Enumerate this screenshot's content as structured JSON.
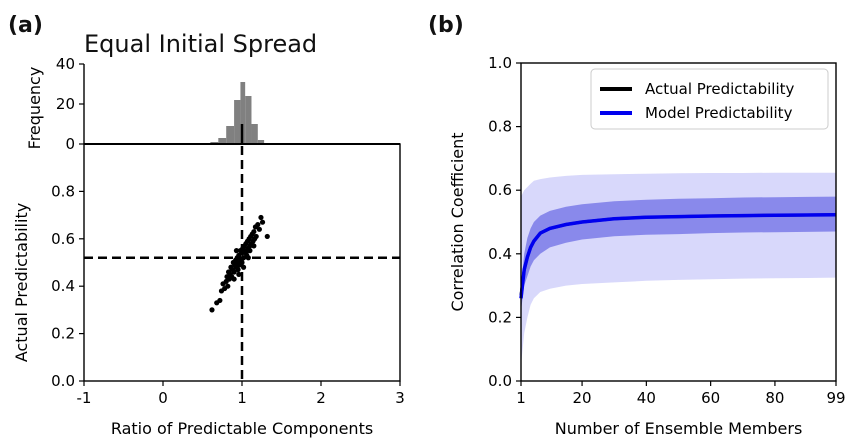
{
  "figure": {
    "panel_a_label": "(a)",
    "panel_b_label": "(b)"
  },
  "chart_data": [
    {
      "id": "a_hist",
      "type": "bar",
      "title": "Equal Initial Spread",
      "ylabel": "Frequency",
      "xlim": [
        -1,
        3
      ],
      "ylim": [
        0,
        40
      ],
      "yticks": [
        0,
        20,
        40
      ],
      "color": "#808080",
      "bins": [
        {
          "x0": 0.6,
          "x1": 0.7,
          "count": 1
        },
        {
          "x0": 0.7,
          "x1": 0.8,
          "count": 3
        },
        {
          "x0": 0.8,
          "x1": 0.9,
          "count": 9
        },
        {
          "x0": 0.9,
          "x1": 0.98,
          "count": 22
        },
        {
          "x0": 0.98,
          "x1": 1.04,
          "count": 31
        },
        {
          "x0": 1.04,
          "x1": 1.12,
          "count": 24
        },
        {
          "x0": 1.12,
          "x1": 1.2,
          "count": 10
        },
        {
          "x0": 1.2,
          "x1": 1.28,
          "count": 2
        }
      ],
      "vline": 1.0
    },
    {
      "id": "a_scatter",
      "type": "scatter",
      "xlabel": "Ratio of Predictable Components",
      "ylabel": "Actual Predictability",
      "xlim": [
        -1,
        3
      ],
      "ylim": [
        0,
        1.0
      ],
      "xticks": [
        -1,
        0,
        1,
        2,
        3
      ],
      "yticks": [
        0.0,
        0.2,
        0.4,
        0.6,
        0.8
      ],
      "ytick_labels": [
        "0.0",
        "0.2",
        "0.4",
        "0.6",
        "0.8"
      ],
      "hline": 0.52,
      "vline": 1.0,
      "color": "#000000",
      "points": [
        [
          0.62,
          0.3
        ],
        [
          0.68,
          0.33
        ],
        [
          0.72,
          0.34
        ],
        [
          0.74,
          0.38
        ],
        [
          0.76,
          0.41
        ],
        [
          0.78,
          0.39
        ],
        [
          0.8,
          0.42
        ],
        [
          0.81,
          0.44
        ],
        [
          0.82,
          0.4
        ],
        [
          0.83,
          0.46
        ],
        [
          0.84,
          0.43
        ],
        [
          0.85,
          0.45
        ],
        [
          0.86,
          0.48
        ],
        [
          0.87,
          0.44
        ],
        [
          0.88,
          0.47
        ],
        [
          0.89,
          0.5
        ],
        [
          0.9,
          0.46
        ],
        [
          0.91,
          0.49
        ],
        [
          0.92,
          0.51
        ],
        [
          0.93,
          0.48
        ],
        [
          0.94,
          0.52
        ],
        [
          0.95,
          0.5
        ],
        [
          0.96,
          0.53
        ],
        [
          0.97,
          0.49
        ],
        [
          0.98,
          0.55
        ],
        [
          0.99,
          0.51
        ],
        [
          1.0,
          0.54
        ],
        [
          1.01,
          0.56
        ],
        [
          1.02,
          0.52
        ],
        [
          1.03,
          0.57
        ],
        [
          1.04,
          0.55
        ],
        [
          1.05,
          0.58
        ],
        [
          1.06,
          0.53
        ],
        [
          1.07,
          0.59
        ],
        [
          1.08,
          0.56
        ],
        [
          1.09,
          0.6
        ],
        [
          1.1,
          0.57
        ],
        [
          1.11,
          0.61
        ],
        [
          1.12,
          0.58
        ],
        [
          1.13,
          0.62
        ],
        [
          1.14,
          0.59
        ],
        [
          1.15,
          0.63
        ],
        [
          1.16,
          0.6
        ],
        [
          1.17,
          0.65
        ],
        [
          1.18,
          0.61
        ],
        [
          1.2,
          0.66
        ],
        [
          1.22,
          0.64
        ],
        [
          1.24,
          0.69
        ],
        [
          1.26,
          0.67
        ],
        [
          1.32,
          0.61
        ],
        [
          0.95,
          0.47
        ],
        [
          1.0,
          0.5
        ],
        [
          1.05,
          0.54
        ],
        [
          1.1,
          0.55
        ],
        [
          0.9,
          0.43
        ],
        [
          0.96,
          0.45
        ],
        [
          1.02,
          0.48
        ],
        [
          1.08,
          0.52
        ],
        [
          1.15,
          0.57
        ],
        [
          0.93,
          0.55
        ]
      ]
    },
    {
      "id": "b_line",
      "type": "line",
      "xlabel": "Number of Ensemble Members",
      "ylabel": "Correlation Coefficient",
      "xlim": [
        1,
        99
      ],
      "ylim": [
        0.0,
        1.0
      ],
      "xticks": [
        1,
        20,
        40,
        60,
        80,
        99
      ],
      "yticks": [
        0.0,
        0.2,
        0.4,
        0.6,
        0.8,
        1.0
      ],
      "ytick_labels": [
        "0.0",
        "0.2",
        "0.4",
        "0.6",
        "0.8",
        "1.0"
      ],
      "legend_position": "top-right",
      "legend": [
        {
          "label": "Actual Predictability",
          "color": "#000000"
        },
        {
          "label": "Model Predictability",
          "color": "#0000ee"
        }
      ],
      "colors": {
        "model_line": "#0000ee",
        "actual_line": "#000000",
        "inner_band": "#7b7be8",
        "outer_band": "#d8d8fb"
      },
      "x": [
        1,
        2,
        3,
        4,
        5,
        7,
        10,
        15,
        20,
        30,
        40,
        50,
        60,
        70,
        80,
        90,
        99
      ],
      "actual": [
        0.27,
        0.35,
        0.39,
        0.42,
        0.44,
        0.465,
        0.48,
        0.492,
        0.5,
        0.51,
        0.515,
        0.517,
        0.519,
        0.52,
        0.521,
        0.522,
        0.523
      ],
      "model": [
        0.26,
        0.35,
        0.39,
        0.42,
        0.44,
        0.465,
        0.48,
        0.492,
        0.5,
        0.51,
        0.515,
        0.517,
        0.519,
        0.52,
        0.521,
        0.522,
        0.523
      ],
      "inner_upper": [
        0.3,
        0.4,
        0.45,
        0.48,
        0.5,
        0.52,
        0.535,
        0.548,
        0.556,
        0.565,
        0.57,
        0.573,
        0.575,
        0.577,
        0.578,
        0.579,
        0.58
      ],
      "inner_lower": [
        0.22,
        0.3,
        0.33,
        0.36,
        0.38,
        0.4,
        0.42,
        0.435,
        0.445,
        0.455,
        0.46,
        0.462,
        0.465,
        0.467,
        0.468,
        0.469,
        0.47
      ],
      "outer_upper": [
        0.58,
        0.6,
        0.61,
        0.62,
        0.63,
        0.635,
        0.64,
        0.645,
        0.648,
        0.65,
        0.652,
        0.653,
        0.654,
        0.654,
        0.655,
        0.655,
        0.655
      ],
      "outer_lower": [
        0.05,
        0.15,
        0.2,
        0.24,
        0.26,
        0.28,
        0.29,
        0.3,
        0.305,
        0.31,
        0.315,
        0.318,
        0.32,
        0.322,
        0.323,
        0.324,
        0.325
      ]
    }
  ]
}
